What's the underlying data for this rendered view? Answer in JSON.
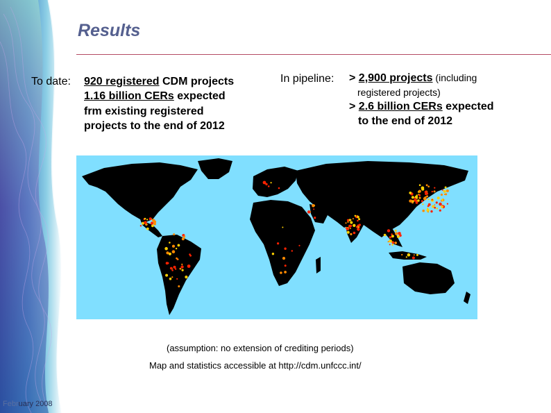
{
  "slide": {
    "title": "Results"
  },
  "to_date": {
    "label": "To date:",
    "line1_underlined": "920 registered",
    "line1_rest": " CDM projects",
    "line2_underlined": "1.16 billion CERs",
    "line2_rest": " expected",
    "line3": "frm existing registered",
    "line4": "projects to the end of 2012"
  },
  "pipeline": {
    "label": "In pipeline:",
    "line1_prefix": "> ",
    "line1_underlined": "2,900 projects",
    "line1_note": " (including",
    "line2": "registered projects)",
    "line3_prefix": "> ",
    "line3_underlined": "2.6 billion CERs",
    "line3_rest": " expected",
    "line4": "to the end of 2012"
  },
  "map": {
    "ocean_color": "#80dfff",
    "land_color": "#000000",
    "marker_colors": [
      "#ff2200",
      "#ff8a00",
      "#ffd000"
    ]
  },
  "notes": {
    "assumption": "(assumption: no extension of crediting periods)",
    "map_source": "Map and statistics accessible at http://cdm.unfccc.int/"
  },
  "footer": {
    "date_prefix": "Febr",
    "date_rest": "uary 2008"
  }
}
